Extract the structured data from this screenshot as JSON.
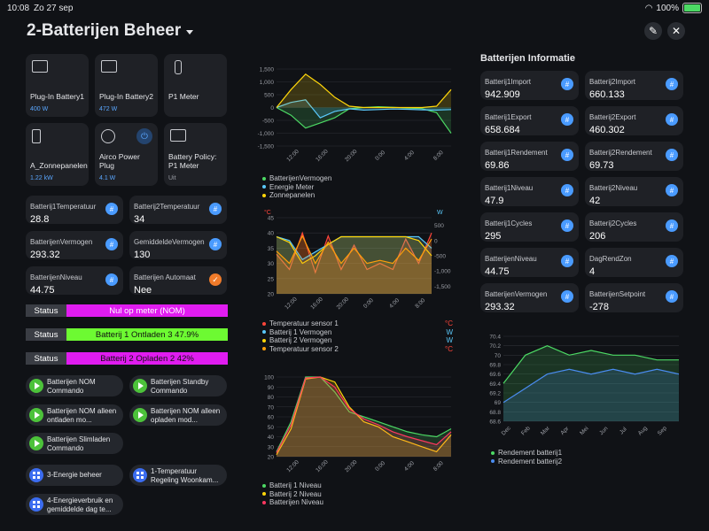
{
  "status_bar": {
    "time": "10:08",
    "date": "Zo 27 sep",
    "battery": "100%"
  },
  "header": {
    "title": "2-Batterijen Beheer"
  },
  "tiles": [
    {
      "name": "Plug-In Battery1",
      "state": "400 W"
    },
    {
      "name": "Plug-In Battery2",
      "state": "472 W"
    },
    {
      "name": "P1 Meter",
      "state": ""
    },
    {
      "name": "A_Zonnepanelen",
      "state": "1.22 kW"
    },
    {
      "name": "Airco Power Plug",
      "state": "4.1 W"
    },
    {
      "name": "Battery Policy: P1 Meter",
      "state": "Uit"
    }
  ],
  "entities": [
    {
      "label": "Batterij1Temperatuur",
      "value": "28.8"
    },
    {
      "label": "Batterij2Temperatuur",
      "value": "34"
    },
    {
      "label": "BatterijenVermogen",
      "value": "293.32"
    },
    {
      "label": "GemiddeldeVermogen",
      "value": "130"
    },
    {
      "label": "BatterijenNiveau",
      "value": "44.75"
    },
    {
      "label": "Batterijen Automaat",
      "value": "Nee"
    }
  ],
  "status_rows": [
    {
      "label": "Status",
      "value": "Nul op meter (NOM)",
      "color": "#e01cf0"
    },
    {
      "label": "Status",
      "value": "Batterij 1 Ontladen 3 47.9%",
      "color": "#6dfa32"
    },
    {
      "label": "Status",
      "value": "Batterij 2 Opladen 2 42%",
      "color": "#e01cf0"
    }
  ],
  "scripts": [
    {
      "label": "Batterijen NOM Commando"
    },
    {
      "label": "Batterijen Standby Commando"
    },
    {
      "label": "Batterijen NOM alleen ontladen mo..."
    },
    {
      "label": "Batterijen NOM alleen opladen mod..."
    },
    {
      "label": "Batterijen Slimladen Commando"
    }
  ],
  "nav_buttons": [
    {
      "label": "3-Energie beheer"
    },
    {
      "label": "1-Temperatuur Regeling Woonkam..."
    },
    {
      "label": "4-Energieverbruik en gemiddelde dag te..."
    }
  ],
  "info": {
    "title": "Batterijen Informatie",
    "items": [
      {
        "label": "Batterij1Import",
        "value": "942.909"
      },
      {
        "label": "Batterij2Import",
        "value": "660.133"
      },
      {
        "label": "Batterij1Export",
        "value": "658.684"
      },
      {
        "label": "Batterij2Export",
        "value": "460.302"
      },
      {
        "label": "Batterij1Rendement",
        "value": "69.86"
      },
      {
        "label": "Batterij2Rendement",
        "value": "69.73"
      },
      {
        "label": "Batterij1Niveau",
        "value": "47.9"
      },
      {
        "label": "Batterij2Niveau",
        "value": "42"
      },
      {
        "label": "Batterij1Cycles",
        "value": "295"
      },
      {
        "label": "Batterij2Cycles",
        "value": "206"
      },
      {
        "label": "BatterijenNiveau",
        "value": "44.75"
      },
      {
        "label": "DagRendZon",
        "value": "4"
      },
      {
        "label": "BatterijenVermogen",
        "value": "293.32"
      },
      {
        "label": "BatterijenSetpoint",
        "value": "-278"
      }
    ]
  },
  "chart_data": [
    {
      "type": "line",
      "x": [
        "10:00",
        "12:00",
        "14:00",
        "16:00",
        "18:00",
        "20:00",
        "22:00",
        "0:00",
        "2:00",
        "4:00",
        "6:00",
        "8:00",
        "10:00"
      ],
      "ylim": [
        -1500,
        1500
      ],
      "yticks": [
        "1,500",
        "1,000",
        "500",
        "0",
        "-500",
        "-1,000",
        "-1,500"
      ],
      "xticks": [
        "12:00",
        "16:00",
        "20:00",
        "0:00",
        "4:00",
        "8:00"
      ],
      "series": [
        {
          "name": "BatterijenVermogen",
          "color": "#4cd964",
          "values": [
            0,
            -300,
            -800,
            -600,
            -400,
            -50,
            0,
            30,
            10,
            -20,
            -40,
            -200,
            -1000
          ]
        },
        {
          "name": "Energie Meter",
          "color": "#5ac8fa",
          "values": [
            0,
            200,
            300,
            -400,
            -150,
            -50,
            -100,
            -80,
            -60,
            -70,
            -90,
            -100,
            -80
          ]
        },
        {
          "name": "Zonnepanelen",
          "color": "#ffd60a",
          "values": [
            0,
            700,
            1300,
            900,
            400,
            50,
            0,
            0,
            0,
            0,
            0,
            50,
            700
          ]
        }
      ]
    },
    {
      "type": "line",
      "x": [
        "10:00",
        "12:00",
        "14:00",
        "16:00",
        "18:00",
        "20:00",
        "22:00",
        "0:00",
        "2:00",
        "4:00",
        "6:00",
        "8:00",
        "10:00"
      ],
      "ylim": [
        20,
        45
      ],
      "y2lim": [
        -1500,
        500
      ],
      "ylabel": "°C",
      "y2label": "W",
      "yticks": [
        "45",
        "40",
        "35",
        "30",
        "25",
        "20"
      ],
      "y2ticks": [
        "500",
        "0",
        "-500",
        "-1,000",
        "-1,500"
      ],
      "xticks": [
        "12:00",
        "16:00",
        "20:00",
        "0:00",
        "4:00",
        "8:00"
      ],
      "series": [
        {
          "name": "Temperatuur sensor 1",
          "unit": "°C",
          "color": "#ff453a",
          "values": [
            33,
            28,
            40,
            27,
            39,
            28,
            36,
            28,
            30,
            28,
            38,
            30,
            40
          ]
        },
        {
          "name": "Batterij 1 Vermogen",
          "unit": "W",
          "color": "#5ac8fa",
          "values": [
            0,
            -100,
            -600,
            -400,
            -200,
            0,
            0,
            0,
            0,
            0,
            0,
            0,
            -300
          ]
        },
        {
          "name": "Batterij 2 Vermogen",
          "unit": "W",
          "color": "#ffd60a",
          "values": [
            0,
            -150,
            -700,
            -500,
            -200,
            0,
            0,
            0,
            0,
            0,
            0,
            -100,
            -500
          ]
        },
        {
          "name": "Temperatuur sensor 2",
          "unit": "°C",
          "color": "#ff9f0a",
          "values": [
            34,
            30,
            39,
            30,
            37,
            30,
            35,
            30,
            31,
            30,
            35,
            31,
            38
          ]
        }
      ]
    },
    {
      "type": "line",
      "x": [
        "10:00",
        "12:00",
        "14:00",
        "16:00",
        "18:00",
        "20:00",
        "22:00",
        "0:00",
        "2:00",
        "4:00",
        "6:00",
        "8:00",
        "10:00"
      ],
      "ylim": [
        20,
        100
      ],
      "yticks": [
        "100",
        "90",
        "80",
        "70",
        "60",
        "50",
        "40",
        "30",
        "20"
      ],
      "xticks": [
        "12:00",
        "16:00",
        "20:00",
        "0:00",
        "4:00",
        "8:00"
      ],
      "series": [
        {
          "name": "Batterij 1 Niveau",
          "color": "#4cd964",
          "values": [
            25,
            55,
            100,
            100,
            85,
            65,
            60,
            55,
            50,
            45,
            42,
            40,
            48
          ]
        },
        {
          "name": "Batterij 2 Niveau",
          "color": "#ffd60a",
          "values": [
            22,
            48,
            98,
            100,
            95,
            70,
            55,
            50,
            40,
            35,
            30,
            25,
            42
          ]
        },
        {
          "name": "Batterijen Niveau",
          "color": "#ff375f",
          "values": [
            24,
            52,
            99,
            100,
            90,
            68,
            58,
            52,
            45,
            40,
            36,
            32,
            45
          ]
        }
      ]
    },
    {
      "type": "line",
      "x": [
        "Dec",
        "Feb",
        "Mar",
        "Apr",
        "Mei",
        "Jun",
        "Jul",
        "Aug",
        "Sep"
      ],
      "ylim": [
        68.6,
        70.4
      ],
      "yticks": [
        "70.4",
        "70.2",
        "70",
        "69.8",
        "69.6",
        "69.4",
        "69.2",
        "69",
        "68.8",
        "68.6"
      ],
      "series": [
        {
          "name": "Rendement batterij1",
          "color": "#4cd964",
          "values": [
            69.4,
            70.0,
            70.2,
            70.0,
            70.1,
            70.0,
            70.0,
            69.9,
            69.9
          ]
        },
        {
          "name": "Rendement batterij2",
          "color": "#4a8cf0",
          "values": [
            69.0,
            69.3,
            69.6,
            69.7,
            69.6,
            69.7,
            69.6,
            69.7,
            69.6
          ]
        }
      ]
    }
  ]
}
